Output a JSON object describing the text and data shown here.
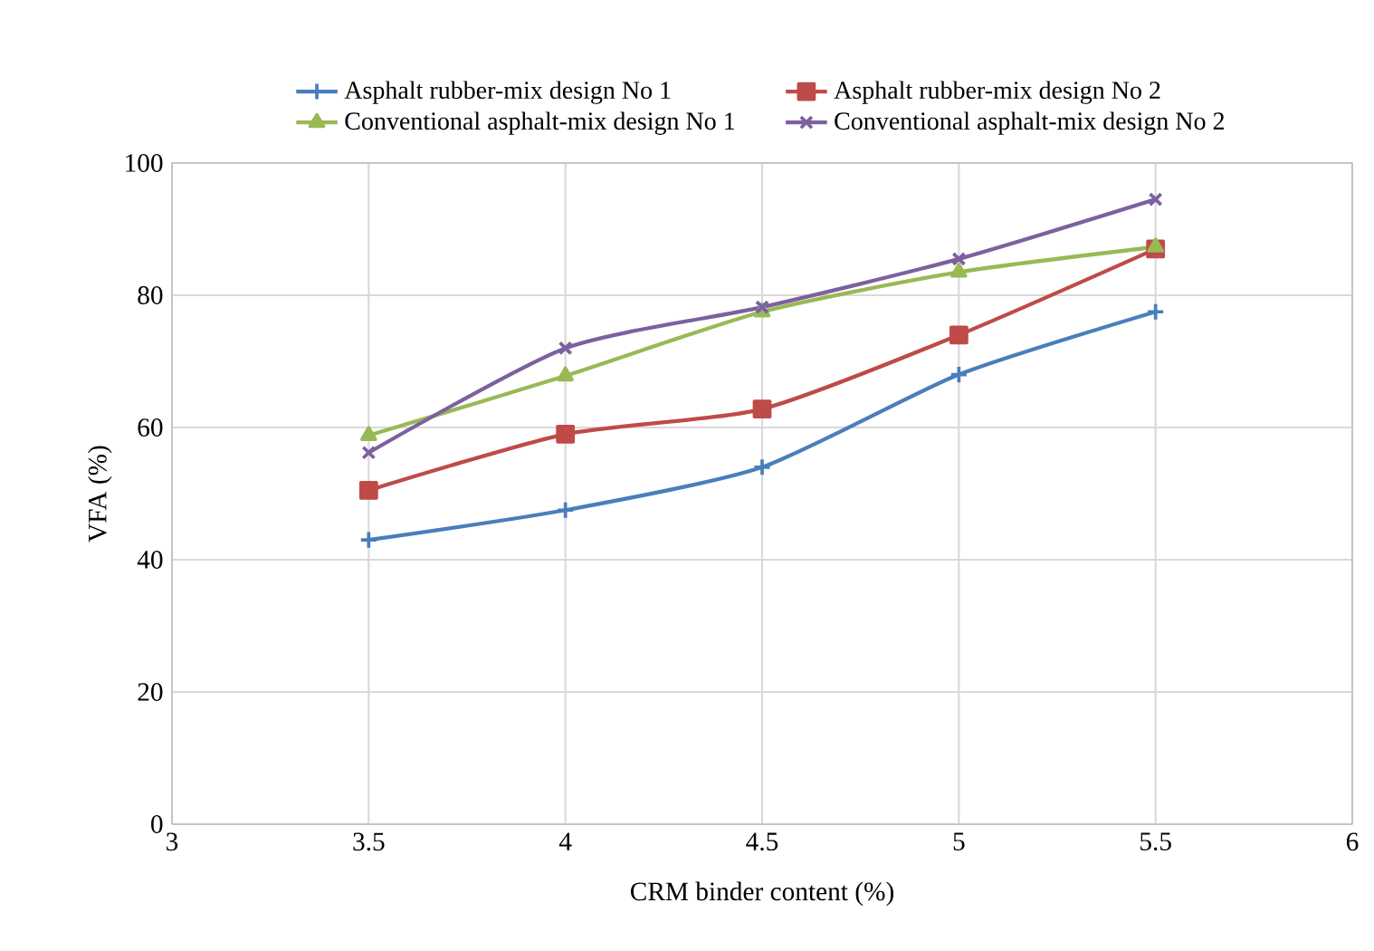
{
  "chart_data": {
    "type": "line",
    "xlabel": "CRM binder content (%)",
    "ylabel": "VFA (%)",
    "x": [
      3.5,
      4,
      4.5,
      5,
      5.5
    ],
    "series": [
      {
        "name": "Asphalt rubber-mix design No 1",
        "color": "#4a7ebb",
        "marker": "plus",
        "values": [
          43,
          47.5,
          54,
          68,
          77.5
        ]
      },
      {
        "name": "Asphalt rubber-mix design No 2",
        "color": "#be4b48",
        "marker": "square",
        "values": [
          50.5,
          59,
          62.8,
          74,
          87
        ]
      },
      {
        "name": "Conventional asphalt-mix design No 1",
        "color": "#98b954",
        "marker": "triangle",
        "values": [
          58.8,
          67.8,
          77.5,
          83.5,
          87.3
        ]
      },
      {
        "name": "Conventional asphalt-mix design No 2",
        "color": "#7d60a0",
        "marker": "cross",
        "values": [
          56.2,
          72,
          78.2,
          85.5,
          94.5
        ]
      }
    ],
    "xlim": [
      3,
      6
    ],
    "xticks": [
      3,
      3.5,
      4,
      4.5,
      5,
      5.5,
      6
    ],
    "ylim": [
      0,
      100
    ],
    "yticks": [
      0,
      20,
      40,
      60,
      80,
      100
    ],
    "grid": true,
    "legend": "top"
  }
}
